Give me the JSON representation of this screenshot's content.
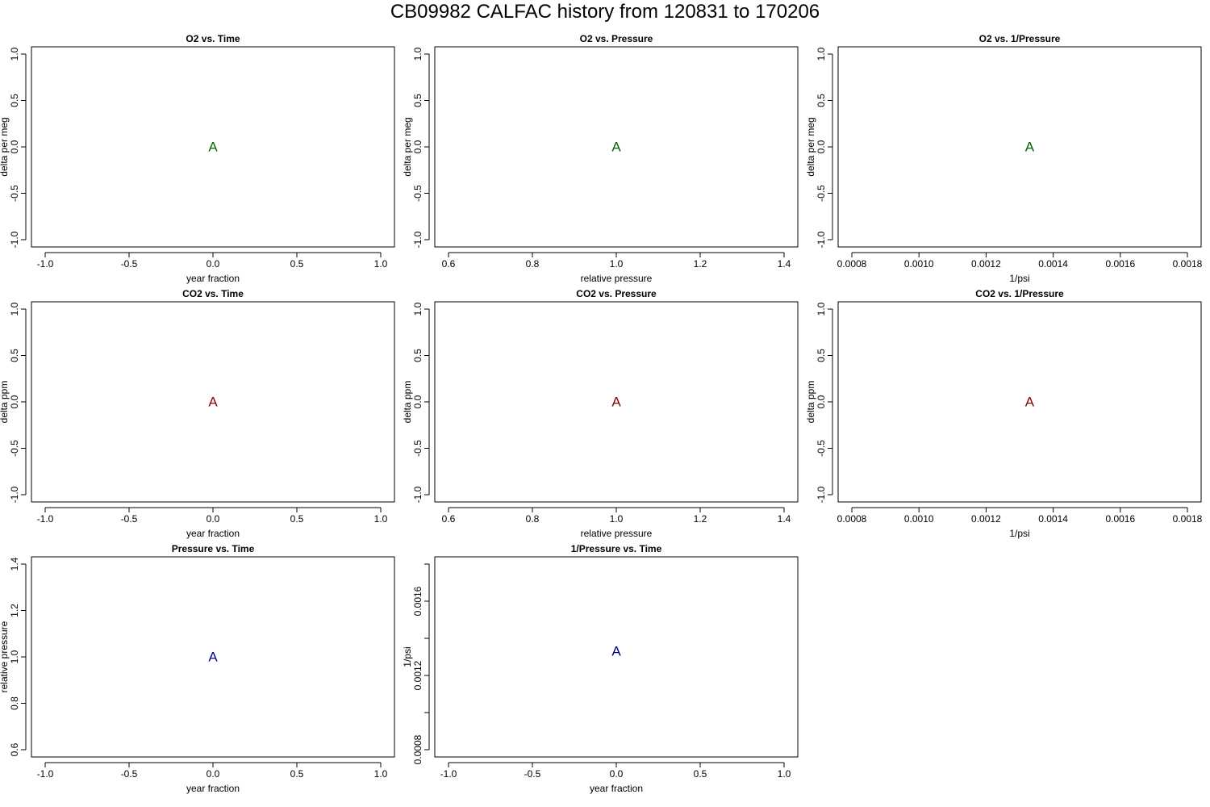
{
  "page_title": "CB09982   CALFAC history from  120831  to  170206",
  "chart_data": [
    {
      "type": "scatter",
      "title": "O2 vs. Time",
      "xlabel": "year fraction",
      "ylabel": "delta per meg",
      "xlim": [
        -1.0,
        1.0
      ],
      "ylim": [
        -1.0,
        1.0
      ],
      "xticks": [
        -1.0,
        -0.5,
        0.0,
        0.5,
        1.0
      ],
      "xtick_labels": [
        "-1.0",
        "-0.5",
        "0.0",
        "0.5",
        "1.0"
      ],
      "yticks": [
        -1.0,
        -0.5,
        0.0,
        0.5,
        1.0
      ],
      "ytick_labels": [
        "-1.0",
        "-0.5",
        "0.0",
        "0.5",
        "1.0"
      ],
      "points": [
        {
          "x": 0.0,
          "y": 0.0,
          "label": "A"
        }
      ],
      "color": "#006400"
    },
    {
      "type": "scatter",
      "title": "O2 vs. Pressure",
      "xlabel": "relative pressure",
      "ylabel": "delta per meg",
      "xlim": [
        0.6,
        1.4
      ],
      "ylim": [
        -1.0,
        1.0
      ],
      "xticks": [
        0.6,
        0.8,
        1.0,
        1.2,
        1.4
      ],
      "xtick_labels": [
        "0.6",
        "0.8",
        "1.0",
        "1.2",
        "1.4"
      ],
      "yticks": [
        -1.0,
        -0.5,
        0.0,
        0.5,
        1.0
      ],
      "ytick_labels": [
        "-1.0",
        "-0.5",
        "0.0",
        "0.5",
        "1.0"
      ],
      "points": [
        {
          "x": 1.0,
          "y": 0.0,
          "label": "A"
        }
      ],
      "color": "#006400"
    },
    {
      "type": "scatter",
      "title": "O2 vs. 1/Pressure",
      "xlabel": "1/psi",
      "ylabel": "delta per meg",
      "xlim": [
        0.0008,
        0.0018
      ],
      "ylim": [
        -1.0,
        1.0
      ],
      "xticks": [
        0.0008,
        0.001,
        0.0012,
        0.0014,
        0.0016,
        0.0018
      ],
      "xtick_labels": [
        "0.0008",
        "0.0010",
        "0.0012",
        "0.0014",
        "0.0016",
        "0.0018"
      ],
      "yticks": [
        -1.0,
        -0.5,
        0.0,
        0.5,
        1.0
      ],
      "ytick_labels": [
        "-1.0",
        "-0.5",
        "0.0",
        "0.5",
        "1.0"
      ],
      "points": [
        {
          "x": 0.00133,
          "y": 0.0,
          "label": "A"
        }
      ],
      "color": "#006400"
    },
    {
      "type": "scatter",
      "title": "CO2 vs. Time",
      "xlabel": "year fraction",
      "ylabel": "delta ppm",
      "xlim": [
        -1.0,
        1.0
      ],
      "ylim": [
        -1.0,
        1.0
      ],
      "xticks": [
        -1.0,
        -0.5,
        0.0,
        0.5,
        1.0
      ],
      "xtick_labels": [
        "-1.0",
        "-0.5",
        "0.0",
        "0.5",
        "1.0"
      ],
      "yticks": [
        -1.0,
        -0.5,
        0.0,
        0.5,
        1.0
      ],
      "ytick_labels": [
        "-1.0",
        "-0.5",
        "0.0",
        "0.5",
        "1.0"
      ],
      "points": [
        {
          "x": 0.0,
          "y": 0.0,
          "label": "A"
        }
      ],
      "color": "#8b0000"
    },
    {
      "type": "scatter",
      "title": "CO2 vs. Pressure",
      "xlabel": "relative pressure",
      "ylabel": "delta ppm",
      "xlim": [
        0.6,
        1.4
      ],
      "ylim": [
        -1.0,
        1.0
      ],
      "xticks": [
        0.6,
        0.8,
        1.0,
        1.2,
        1.4
      ],
      "xtick_labels": [
        "0.6",
        "0.8",
        "1.0",
        "1.2",
        "1.4"
      ],
      "yticks": [
        -1.0,
        -0.5,
        0.0,
        0.5,
        1.0
      ],
      "ytick_labels": [
        "-1.0",
        "-0.5",
        "0.0",
        "0.5",
        "1.0"
      ],
      "points": [
        {
          "x": 1.0,
          "y": 0.0,
          "label": "A"
        }
      ],
      "color": "#8b0000"
    },
    {
      "type": "scatter",
      "title": "CO2 vs. 1/Pressure",
      "xlabel": "1/psi",
      "ylabel": "delta ppm",
      "xlim": [
        0.0008,
        0.0018
      ],
      "ylim": [
        -1.0,
        1.0
      ],
      "xticks": [
        0.0008,
        0.001,
        0.0012,
        0.0014,
        0.0016,
        0.0018
      ],
      "xtick_labels": [
        "0.0008",
        "0.0010",
        "0.0012",
        "0.0014",
        "0.0016",
        "0.0018"
      ],
      "yticks": [
        -1.0,
        -0.5,
        0.0,
        0.5,
        1.0
      ],
      "ytick_labels": [
        "-1.0",
        "-0.5",
        "0.0",
        "0.5",
        "1.0"
      ],
      "points": [
        {
          "x": 0.00133,
          "y": 0.0,
          "label": "A"
        }
      ],
      "color": "#8b0000"
    },
    {
      "type": "scatter",
      "title": "Pressure vs. Time",
      "xlabel": "year fraction",
      "ylabel": "relative pressure",
      "xlim": [
        -1.0,
        1.0
      ],
      "ylim": [
        0.6,
        1.4
      ],
      "xticks": [
        -1.0,
        -0.5,
        0.0,
        0.5,
        1.0
      ],
      "xtick_labels": [
        "-1.0",
        "-0.5",
        "0.0",
        "0.5",
        "1.0"
      ],
      "yticks": [
        0.6,
        0.8,
        1.0,
        1.2,
        1.4
      ],
      "ytick_labels": [
        "0.6",
        "0.8",
        "1.0",
        "1.2",
        "1.4"
      ],
      "points": [
        {
          "x": 0.0,
          "y": 1.0,
          "label": "A"
        }
      ],
      "color": "#00008b"
    },
    {
      "type": "scatter",
      "title": "1/Pressure vs. Time",
      "xlabel": "year fraction",
      "ylabel": "1/psi",
      "xlim": [
        -1.0,
        1.0
      ],
      "ylim": [
        0.0008,
        0.0018
      ],
      "xticks": [
        -1.0,
        -0.5,
        0.0,
        0.5,
        1.0
      ],
      "xtick_labels": [
        "-1.0",
        "-0.5",
        "0.0",
        "0.5",
        "1.0"
      ],
      "yticks": [
        0.0008,
        0.001,
        0.0012,
        0.0014,
        0.0016,
        0.0018
      ],
      "ytick_labels": [
        "0.0008",
        "",
        "0.0012",
        "",
        "0.0016",
        ""
      ],
      "points": [
        {
          "x": 0.0,
          "y": 0.00133,
          "label": "A"
        }
      ],
      "color": "#00008b"
    }
  ]
}
